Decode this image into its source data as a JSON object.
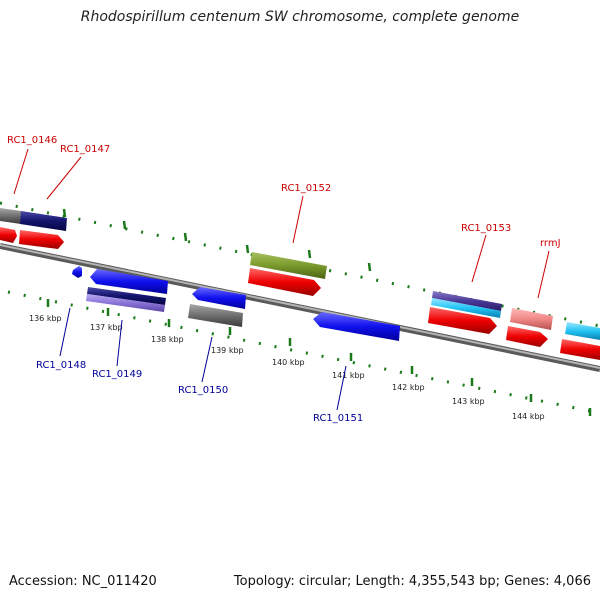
{
  "title": "Rhodospirillum centenum SW chromosome, complete genome",
  "footer": {
    "accession": "Accession: NC_011420",
    "summary": "Topology: circular; Length: 4,355,543 bp; Genes: 4,066"
  },
  "colors": {
    "top_label": "#cc0000",
    "bottom_label": "#000099",
    "dot_track": "#1a7a1a",
    "backbone": "#8c8c8c"
  },
  "scale_labels": [
    "136 kbp",
    "137 kbp",
    "138 kbp",
    "139 kbp",
    "140 kbp",
    "141 kbp",
    "142 kbp",
    "143 kbp",
    "144 kbp"
  ],
  "gene_labels": [
    {
      "id": "RC1_0146",
      "strand": "top"
    },
    {
      "id": "RC1_0147",
      "strand": "top"
    },
    {
      "id": "RC1_0152",
      "strand": "top"
    },
    {
      "id": "RC1_0153",
      "strand": "top"
    },
    {
      "id": "rrmJ",
      "strand": "top"
    },
    {
      "id": "RC1_0148",
      "strand": "bottom"
    },
    {
      "id": "RC1_0149",
      "strand": "bottom"
    },
    {
      "id": "RC1_0150",
      "strand": "bottom"
    },
    {
      "id": "RC1_0151",
      "strand": "bottom"
    }
  ]
}
